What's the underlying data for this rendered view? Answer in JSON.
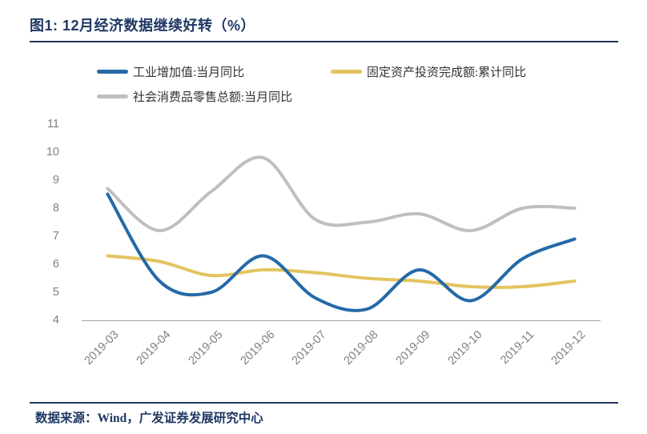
{
  "title": {
    "text": "图1:  12月经济数据继续好转（%）"
  },
  "footer": {
    "text": "数据来源：Wind，广发证券发展研究中心"
  },
  "colors": {
    "title_navy": "#1F3864",
    "rule": "#22365A",
    "axis_line": "#A6A6A6",
    "tick_text": "#7F7F7F",
    "legend_text": "#333333",
    "series_blue": "#2569A8",
    "series_yellow": "#E3C45F",
    "series_gray": "#BFBFBF"
  },
  "chart_data": {
    "type": "line",
    "smoothed": true,
    "grid": false,
    "legend_position": "top",
    "categories": [
      "2019-03",
      "2019-04",
      "2019-05",
      "2019-06",
      "2019-07",
      "2019-08",
      "2019-09",
      "2019-10",
      "2019-11",
      "2019-12"
    ],
    "series": [
      {
        "name": "工业增加值:当月同比",
        "color": "#2569A8",
        "values": [
          8.5,
          5.4,
          5.0,
          6.3,
          4.8,
          4.4,
          5.8,
          4.7,
          6.2,
          6.9
        ]
      },
      {
        "name": "固定资产投资完成额:累计同比",
        "color": "#E3C45F",
        "values": [
          6.3,
          6.1,
          5.6,
          5.8,
          5.7,
          5.5,
          5.4,
          5.2,
          5.2,
          5.4
        ]
      },
      {
        "name": "社会消费品零售总额:当月同比",
        "color": "#BFBFBF",
        "values": [
          8.7,
          7.2,
          8.6,
          9.8,
          7.6,
          7.5,
          7.8,
          7.2,
          8.0,
          8.0
        ]
      }
    ],
    "ylim": [
      4,
      11
    ],
    "y_ticks": [
      11,
      10,
      9,
      8,
      7,
      6,
      5,
      4
    ],
    "xlabel": "",
    "ylabel": ""
  }
}
